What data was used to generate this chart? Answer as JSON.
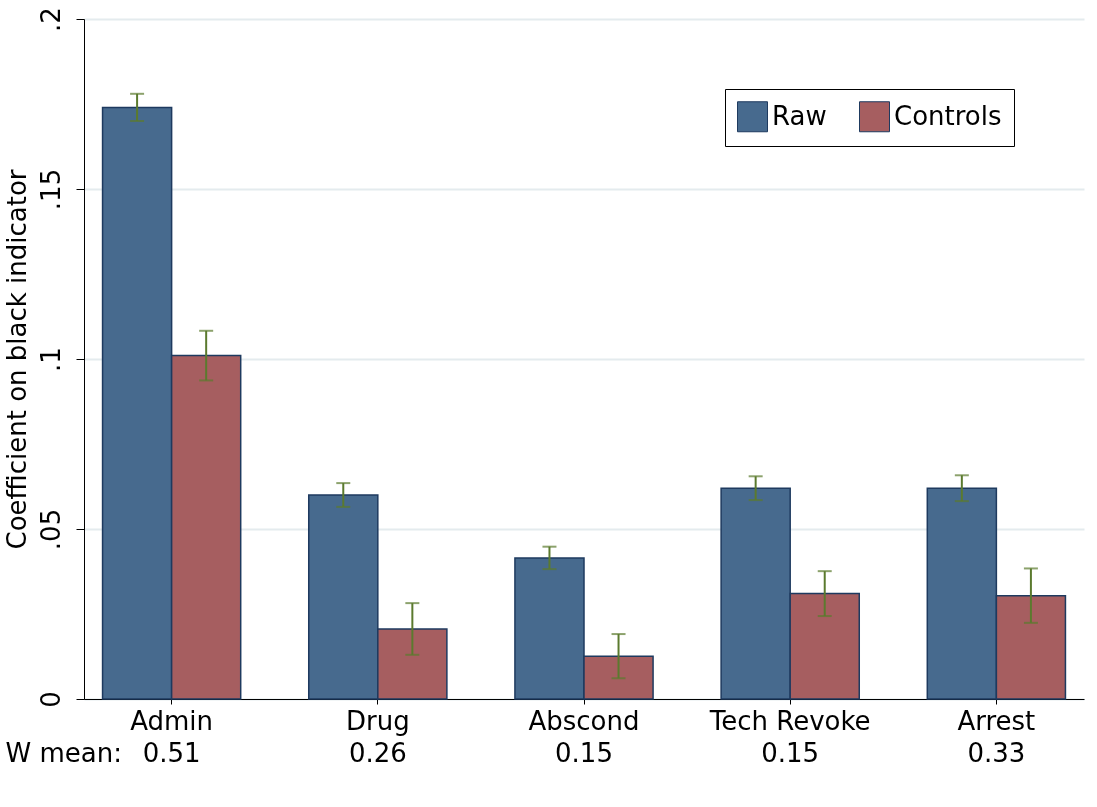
{
  "chart_data": {
    "type": "bar",
    "ylabel": "Coefficient on black indicator",
    "categories": [
      "Admin",
      "Drug",
      "Abscond",
      "Tech Revoke",
      "Arrest"
    ],
    "series": [
      {
        "name": "Raw",
        "color": "#476a8e",
        "values": [
          0.174,
          0.06,
          0.0415,
          0.062,
          0.062
        ],
        "errors": [
          0.004,
          0.0035,
          0.0033,
          0.0035,
          0.0038
        ]
      },
      {
        "name": "Controls",
        "color": "#a65e60",
        "values": [
          0.101,
          0.0206,
          0.0126,
          0.031,
          0.0304
        ],
        "errors": [
          0.0073,
          0.0076,
          0.0065,
          0.0066,
          0.008
        ]
      }
    ],
    "ylim": [
      0,
      0.2
    ],
    "yticks": [
      0,
      {
        "value": 0.05,
        "label": ".05"
      },
      {
        "value": 0.1,
        "label": ".1"
      },
      {
        "value": 0.15,
        "label": ".15"
      },
      {
        "value": 0.2,
        "label": ".2"
      }
    ],
    "grid": "y",
    "legend": "top right",
    "annotations": [
      "W mean:",
      "0.51",
      "0.26",
      "0.15",
      "0.15",
      "0.33"
    ]
  }
}
